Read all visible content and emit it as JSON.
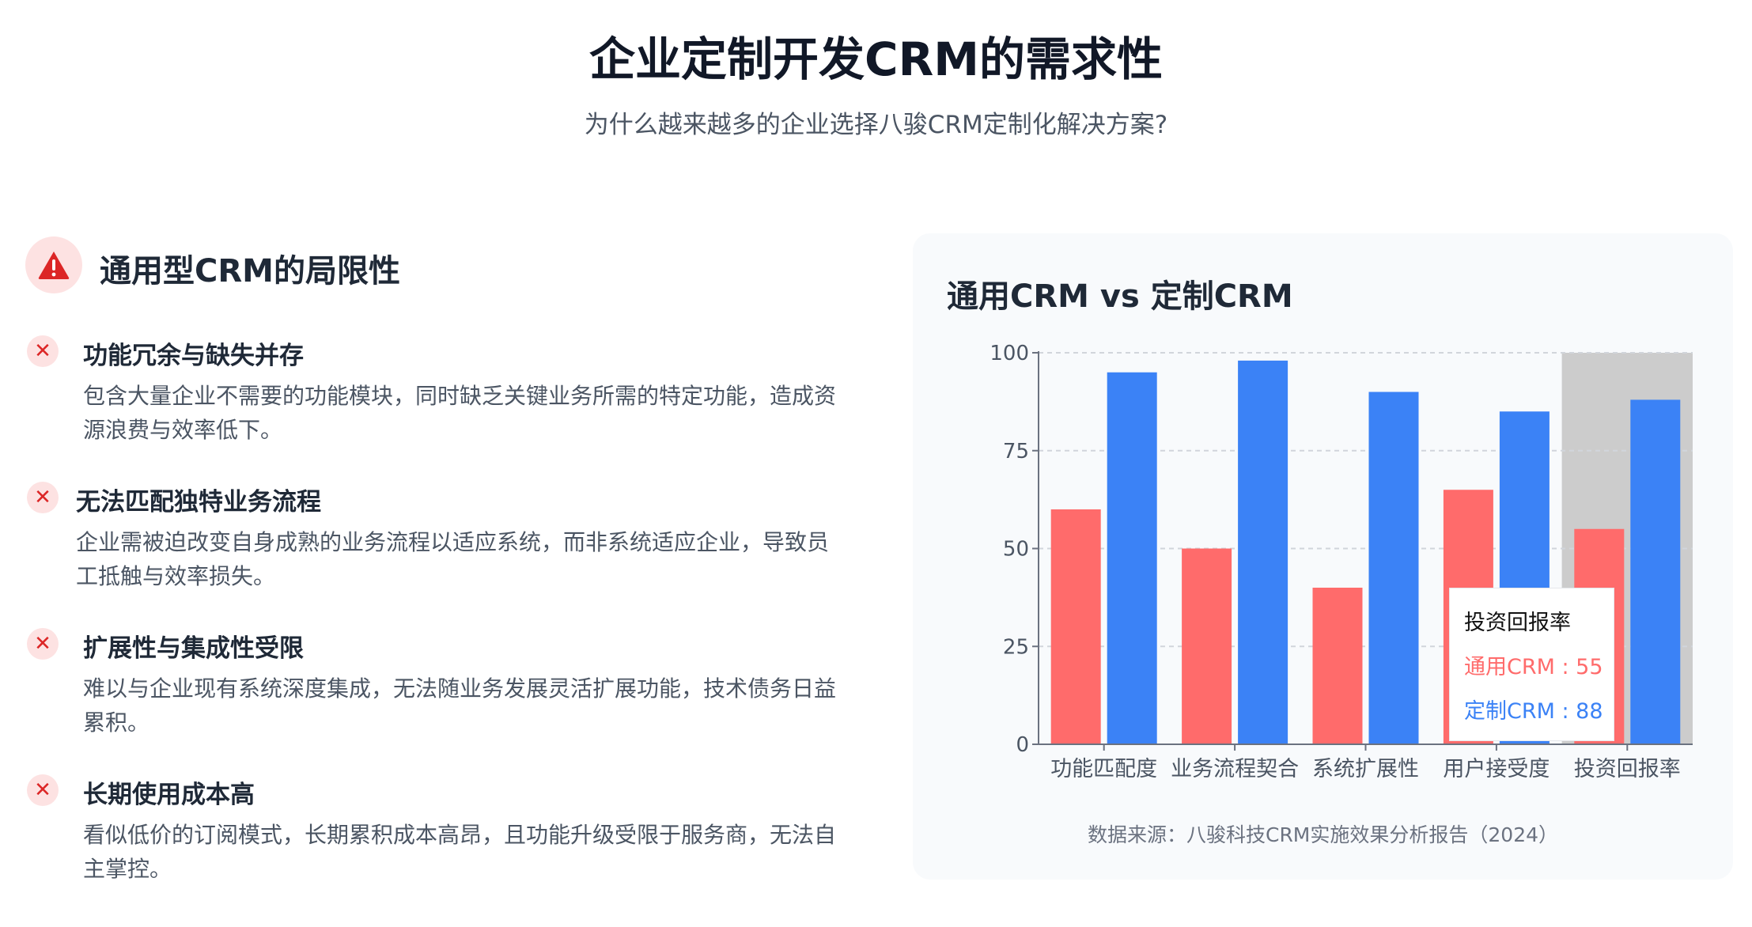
{
  "header": {
    "title": "企业定制开发CRM的需求性",
    "subtitle": "为什么越来越多的企业选择八骏CRM定制化解决方案?"
  },
  "limitations": {
    "icon": "warning-triangle-icon",
    "title": "通用型CRM的局限性",
    "items": [
      {
        "icon": "x-icon",
        "title": "功能冗余与缺失并存",
        "desc": "包含大量企业不需要的功能模块，同时缺乏关键业务所需的特定功能，造成资源浪费与效率低下。"
      },
      {
        "icon": "x-icon",
        "title": "无法匹配独特业务流程",
        "desc": "企业需被迫改变自身成熟的业务流程以适应系统，而非系统适应企业，导致员工抵触与效率损失。"
      },
      {
        "icon": "x-icon",
        "title": "扩展性与集成性受限",
        "desc": "难以与企业现有系统深度集成，无法随业务发展灵活扩展功能，技术债务日益累积。"
      },
      {
        "icon": "x-icon",
        "title": "长期使用成本高",
        "desc": "看似低价的订阅模式，长期累积成本高昂，且功能升级受限于服务商，无法自主掌控。"
      }
    ]
  },
  "chart_data": {
    "type": "bar",
    "title": "通用CRM vs 定制CRM",
    "categories": [
      "功能匹配度",
      "业务流程契合",
      "系统扩展性",
      "用户接受度",
      "投资回报率"
    ],
    "series": [
      {
        "name": "通用CRM",
        "values": [
          60,
          50,
          40,
          65,
          55
        ],
        "color": "#ff6b6b"
      },
      {
        "name": "定制CRM",
        "values": [
          95,
          98,
          90,
          85,
          88
        ],
        "color": "#3b82f6"
      }
    ],
    "ylim": [
      0,
      100
    ],
    "yticks": [
      "0",
      "25",
      "50",
      "75",
      "100"
    ],
    "grid": true,
    "highlighted_category": "投资回报率",
    "tooltip": {
      "title": "投资回报率",
      "lines": [
        "通用CRM : 55",
        "定制CRM : 88"
      ]
    },
    "source": "数据来源：八骏科技CRM实施效果分析报告（2024）"
  }
}
